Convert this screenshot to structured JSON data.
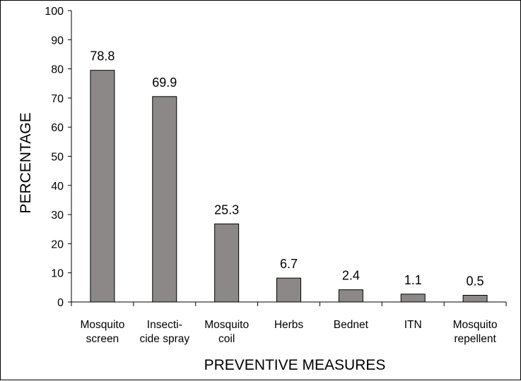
{
  "chart_data": {
    "type": "bar",
    "categories": [
      [
        "Mosquito",
        "screen"
      ],
      [
        "Insecti-",
        "cide spray"
      ],
      [
        "Mosquito",
        "coil"
      ],
      [
        "Herbs"
      ],
      [
        "Bednet"
      ],
      [
        "ITN"
      ],
      [
        "Mosquito",
        "repellent"
      ]
    ],
    "values": [
      78.8,
      69.9,
      25.3,
      6.7,
      2.4,
      1.1,
      0.5
    ],
    "bar_display_values": [
      79.5,
      70.5,
      26.8,
      8.2,
      4.2,
      2.7,
      2.3
    ],
    "data_labels": [
      "78.8",
      "69.9",
      "25.3",
      "6.7",
      "2.4",
      "1.1",
      "0.5"
    ],
    "xlabel": "PREVENTIVE MEASURES",
    "ylabel": "PERCENTAGE",
    "ylim": [
      0,
      100
    ],
    "yticks": [
      0,
      10,
      20,
      30,
      40,
      50,
      60,
      70,
      80,
      90,
      100
    ],
    "grid": false,
    "legend": "none",
    "colors": {
      "bar_fill": "#8c8888",
      "bar_stroke": "#000000",
      "axis": "#000000",
      "background": "#ffffff"
    }
  }
}
